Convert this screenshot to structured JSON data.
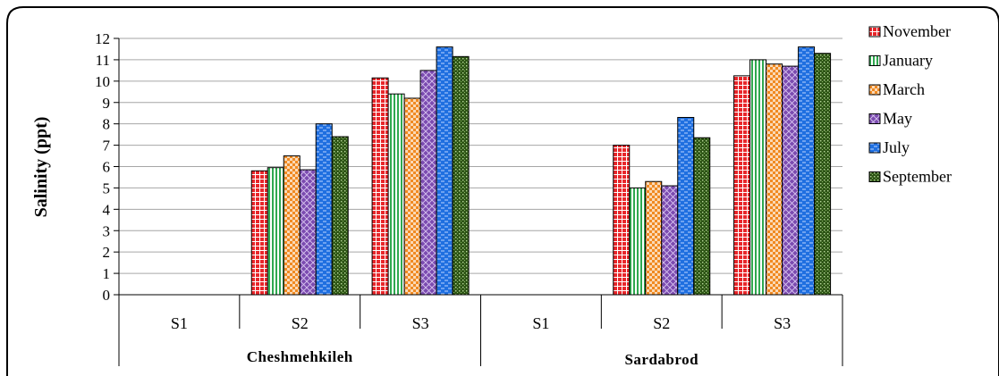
{
  "chart_data": {
    "type": "bar",
    "ylabel": "Salinity (ppt)",
    "ylim": [
      0,
      12
    ],
    "yticks": [
      0,
      1,
      2,
      3,
      4,
      5,
      6,
      7,
      8,
      9,
      10,
      11,
      12
    ],
    "grid": true,
    "legend": "right",
    "groups": [
      {
        "label": "Cheshmehkileh",
        "categories": [
          "S1",
          "S2",
          "S3"
        ]
      },
      {
        "label": "Sardabrod",
        "categories": [
          "S1",
          "S2",
          "S3"
        ]
      }
    ],
    "categories": [
      "S1",
      "S2",
      "S3",
      "S1",
      "S2",
      "S3"
    ],
    "series": [
      {
        "name": "November",
        "color": "#e8262a",
        "pattern": "grid",
        "values": [
          null,
          5.8,
          10.15,
          null,
          7.0,
          10.25
        ]
      },
      {
        "name": "January",
        "color": "#2fa84f",
        "pattern": "vlines",
        "values": [
          null,
          5.95,
          9.4,
          null,
          5.0,
          11.0
        ]
      },
      {
        "name": "March",
        "color": "#f59a3c",
        "pattern": "checker",
        "values": [
          null,
          6.5,
          9.2,
          null,
          5.3,
          10.8
        ]
      },
      {
        "name": "May",
        "color": "#6a3d9a",
        "pattern": "diamond",
        "values": [
          null,
          5.85,
          10.5,
          null,
          5.1,
          10.7
        ]
      },
      {
        "name": "July",
        "color": "#1f6fe0",
        "pattern": "dashes",
        "values": [
          null,
          8.0,
          11.6,
          null,
          8.3,
          11.6
        ]
      },
      {
        "name": "September",
        "color": "#3d6b1e",
        "pattern": "dots",
        "values": [
          null,
          7.4,
          11.15,
          null,
          7.35,
          11.3
        ]
      }
    ]
  }
}
